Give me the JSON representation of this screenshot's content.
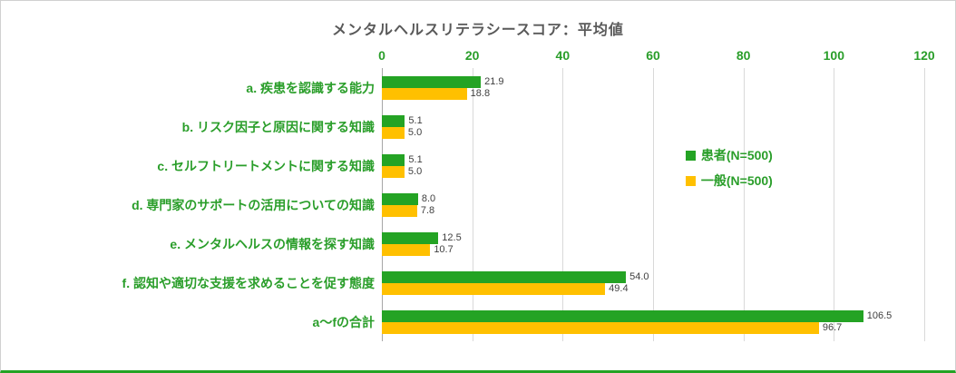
{
  "chart_data": {
    "type": "bar",
    "orientation": "horizontal",
    "title": "メンタルヘルスリテラシースコア：平均値",
    "categories": [
      "a. 疾患を認識する能力",
      "b. リスク因子と原因に関する知識",
      "c. セルフトリートメントに関する知識",
      "d. 専門家のサポートの活用についての知識",
      "e. メンタルヘルスの情報を探す知識",
      "f. 認知や適切な支援を求めることを促す態度",
      "a〜fの合計"
    ],
    "series": [
      {
        "name": "患者(N=500)",
        "color": "#24a324",
        "values": [
          21.9,
          5.1,
          5.1,
          8.0,
          12.5,
          54.0,
          106.5
        ]
      },
      {
        "name": "一般(N=500)",
        "color": "#ffc000",
        "values": [
          18.8,
          5.0,
          5.0,
          7.8,
          10.7,
          49.4,
          96.7
        ]
      }
    ],
    "x_ticks": [
      0,
      20,
      40,
      60,
      80,
      100,
      120
    ],
    "xlim": [
      0,
      120
    ],
    "grid": true,
    "legend_position": "right-middle",
    "value_labels": "one-decimal"
  },
  "colors": {
    "accent_green": "#24a324",
    "accent_yellow": "#ffc000",
    "title_gray": "#595959",
    "gridline_gray": "#d9d9d9",
    "baseline_gray": "#a6a6a6"
  }
}
